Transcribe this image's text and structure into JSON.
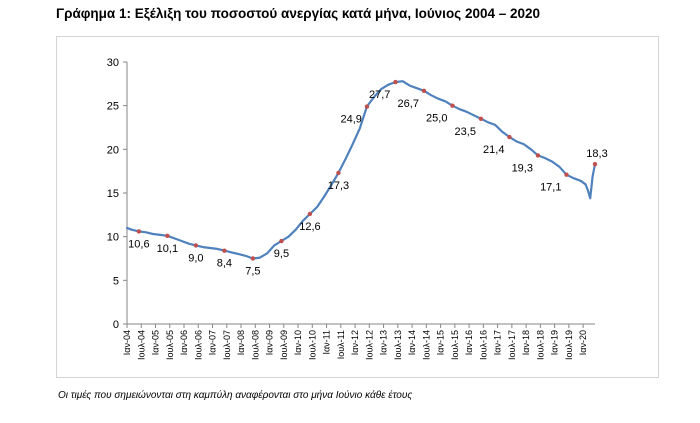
{
  "title": "Γράφημα 1: Εξέλιξη του ποσοστού ανεργίας κατά μήνα, Ιούνιος 2004 – 2020",
  "footnote": "Οι τιμές που σημειώνονται στη καμπύλη αναφέρονται στο μήνα Ιούνιο κάθε έτους",
  "chart_data": {
    "type": "line",
    "title": "Γράφημα 1: Εξέλιξη του ποσοστού ανεργίας κατά μήνα, Ιούνιος 2004 – 2020",
    "xlabel": "",
    "ylabel": "",
    "ylim": [
      0,
      30
    ],
    "yticks": [
      0,
      5,
      10,
      15,
      20,
      25,
      30
    ],
    "grid": false,
    "legend": "none",
    "line_color": "#4f81bd",
    "marker_color": "#c0504d",
    "x_ticks": [
      "Ιαν-04",
      "Ιουλ-04",
      "Ιαν-05",
      "Ιουλ-05",
      "Ιαν-06",
      "Ιουλ-06",
      "Ιαν-07",
      "Ιουλ-07",
      "Ιαν-08",
      "Ιουλ-08",
      "Ιαν-09",
      "Ιουλ-09",
      "Ιαν-10",
      "Ιουλ-10",
      "Ιαν-11",
      "Ιουλ-11",
      "Ιαν-12",
      "Ιουλ-12",
      "Ιαν-13",
      "Ιουλ-13",
      "Ιαν-14",
      "Ιουλ-14",
      "Ιαν-15",
      "Ιουλ-15",
      "Ιαν-16",
      "Ιουλ-16",
      "Ιαν-17",
      "Ιουλ-17",
      "Ιαν-18",
      "Ιουλ-18",
      "Ιαν-19",
      "Ιουλ-19",
      "Ιαν-20"
    ],
    "series": [
      {
        "values": [
          {
            "x": "2004-01",
            "y": 11.0
          },
          {
            "x": "2004-03",
            "y": 10.8
          },
          {
            "x": "2004-06",
            "y": 10.6
          },
          {
            "x": "2004-09",
            "y": 10.5
          },
          {
            "x": "2004-12",
            "y": 10.3
          },
          {
            "x": "2005-03",
            "y": 10.2
          },
          {
            "x": "2005-06",
            "y": 10.1
          },
          {
            "x": "2005-09",
            "y": 9.8
          },
          {
            "x": "2005-12",
            "y": 9.5
          },
          {
            "x": "2006-03",
            "y": 9.2
          },
          {
            "x": "2006-06",
            "y": 9.0
          },
          {
            "x": "2006-09",
            "y": 8.8
          },
          {
            "x": "2006-12",
            "y": 8.7
          },
          {
            "x": "2007-03",
            "y": 8.6
          },
          {
            "x": "2007-06",
            "y": 8.4
          },
          {
            "x": "2007-09",
            "y": 8.2
          },
          {
            "x": "2007-12",
            "y": 8.0
          },
          {
            "x": "2008-03",
            "y": 7.8
          },
          {
            "x": "2008-06",
            "y": 7.5
          },
          {
            "x": "2008-09",
            "y": 7.6
          },
          {
            "x": "2008-12",
            "y": 8.1
          },
          {
            "x": "2009-03",
            "y": 9.0
          },
          {
            "x": "2009-06",
            "y": 9.5
          },
          {
            "x": "2009-09",
            "y": 10.0
          },
          {
            "x": "2009-12",
            "y": 10.8
          },
          {
            "x": "2010-03",
            "y": 11.8
          },
          {
            "x": "2010-06",
            "y": 12.6
          },
          {
            "x": "2010-09",
            "y": 13.4
          },
          {
            "x": "2010-12",
            "y": 14.6
          },
          {
            "x": "2011-03",
            "y": 15.9
          },
          {
            "x": "2011-06",
            "y": 17.3
          },
          {
            "x": "2011-09",
            "y": 18.9
          },
          {
            "x": "2011-12",
            "y": 20.6
          },
          {
            "x": "2012-03",
            "y": 22.4
          },
          {
            "x": "2012-06",
            "y": 24.9
          },
          {
            "x": "2012-09",
            "y": 26.0
          },
          {
            "x": "2012-12",
            "y": 26.9
          },
          {
            "x": "2013-03",
            "y": 27.4
          },
          {
            "x": "2013-06",
            "y": 27.7
          },
          {
            "x": "2013-09",
            "y": 27.8
          },
          {
            "x": "2013-12",
            "y": 27.3
          },
          {
            "x": "2014-03",
            "y": 27.0
          },
          {
            "x": "2014-06",
            "y": 26.7
          },
          {
            "x": "2014-09",
            "y": 26.2
          },
          {
            "x": "2014-12",
            "y": 25.8
          },
          {
            "x": "2015-03",
            "y": 25.5
          },
          {
            "x": "2015-06",
            "y": 25.0
          },
          {
            "x": "2015-09",
            "y": 24.6
          },
          {
            "x": "2015-12",
            "y": 24.3
          },
          {
            "x": "2016-03",
            "y": 23.9
          },
          {
            "x": "2016-06",
            "y": 23.5
          },
          {
            "x": "2016-09",
            "y": 23.1
          },
          {
            "x": "2016-12",
            "y": 22.8
          },
          {
            "x": "2017-03",
            "y": 22.0
          },
          {
            "x": "2017-06",
            "y": 21.4
          },
          {
            "x": "2017-09",
            "y": 20.9
          },
          {
            "x": "2017-12",
            "y": 20.6
          },
          {
            "x": "2018-03",
            "y": 20.0
          },
          {
            "x": "2018-06",
            "y": 19.3
          },
          {
            "x": "2018-09",
            "y": 19.0
          },
          {
            "x": "2018-12",
            "y": 18.6
          },
          {
            "x": "2019-03",
            "y": 18.0
          },
          {
            "x": "2019-06",
            "y": 17.1
          },
          {
            "x": "2019-09",
            "y": 16.7
          },
          {
            "x": "2019-12",
            "y": 16.4
          },
          {
            "x": "2020-02",
            "y": 16.0
          },
          {
            "x": "2020-03",
            "y": 15.3
          },
          {
            "x": "2020-04",
            "y": 14.4
          },
          {
            "x": "2020-05",
            "y": 16.9
          },
          {
            "x": "2020-06",
            "y": 18.3
          }
        ]
      }
    ],
    "annotations": [
      {
        "x": "2004-06",
        "y": 10.6,
        "label": "10,6"
      },
      {
        "x": "2005-06",
        "y": 10.1,
        "label": "10,1"
      },
      {
        "x": "2006-06",
        "y": 9.0,
        "label": "9,0"
      },
      {
        "x": "2007-06",
        "y": 8.4,
        "label": "8,4"
      },
      {
        "x": "2008-06",
        "y": 7.5,
        "label": "7,5"
      },
      {
        "x": "2009-06",
        "y": 9.5,
        "label": "9,5"
      },
      {
        "x": "2010-06",
        "y": 12.6,
        "label": "12,6"
      },
      {
        "x": "2011-06",
        "y": 17.3,
        "label": "17,3"
      },
      {
        "x": "2012-06",
        "y": 24.9,
        "label": "24,9"
      },
      {
        "x": "2013-06",
        "y": 27.7,
        "label": "27,7"
      },
      {
        "x": "2014-06",
        "y": 26.7,
        "label": "26,7"
      },
      {
        "x": "2015-06",
        "y": 25.0,
        "label": "25,0"
      },
      {
        "x": "2016-06",
        "y": 23.5,
        "label": "23,5"
      },
      {
        "x": "2017-06",
        "y": 21.4,
        "label": "21,4"
      },
      {
        "x": "2018-06",
        "y": 19.3,
        "label": "19,3"
      },
      {
        "x": "2019-06",
        "y": 17.1,
        "label": "17,1"
      },
      {
        "x": "2020-06",
        "y": 18.3,
        "label": "18,3"
      }
    ]
  }
}
